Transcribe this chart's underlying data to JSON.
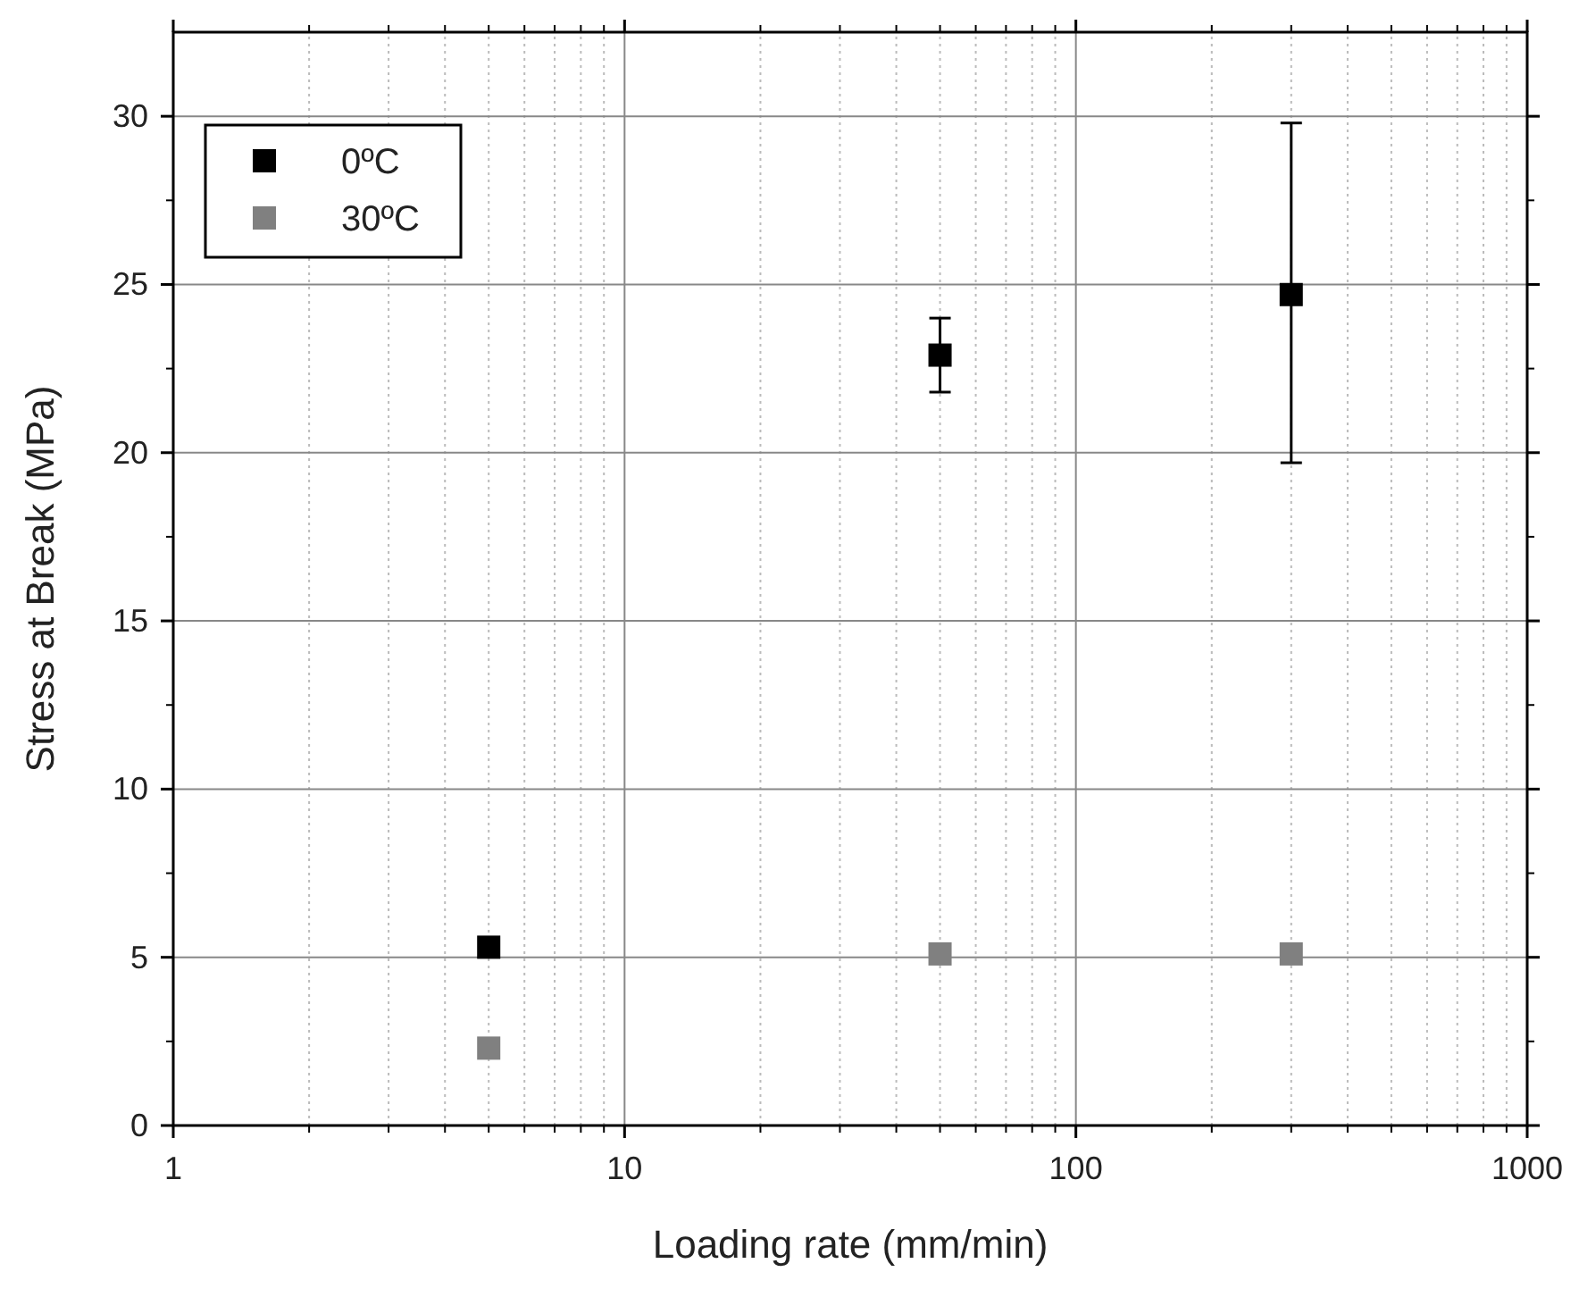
{
  "chart_data": {
    "type": "scatter",
    "xlabel": "Loading rate (mm/min)",
    "ylabel": "Stress at Break (MPa)",
    "log": "x",
    "xlim": [
      1,
      1000
    ],
    "xticks": [
      1,
      10,
      100,
      1000
    ],
    "ylim": [
      0,
      32.5
    ],
    "yticks": [
      0,
      5,
      10,
      15,
      20,
      25,
      30
    ],
    "grid": true,
    "legend": "top left",
    "marker": "square",
    "series": [
      {
        "name": "0ºC",
        "color": "#000000",
        "x": [
          5,
          50,
          300
        ],
        "values": [
          5.3,
          22.9,
          24.7
        ],
        "errors": [
          null,
          [
            21.8,
            24.0
          ],
          [
            19.7,
            29.8
          ]
        ]
      },
      {
        "name": "30ºC",
        "color": "#808080",
        "x": [
          5,
          50,
          300
        ],
        "values": [
          2.3,
          5.1,
          5.1
        ]
      }
    ]
  }
}
